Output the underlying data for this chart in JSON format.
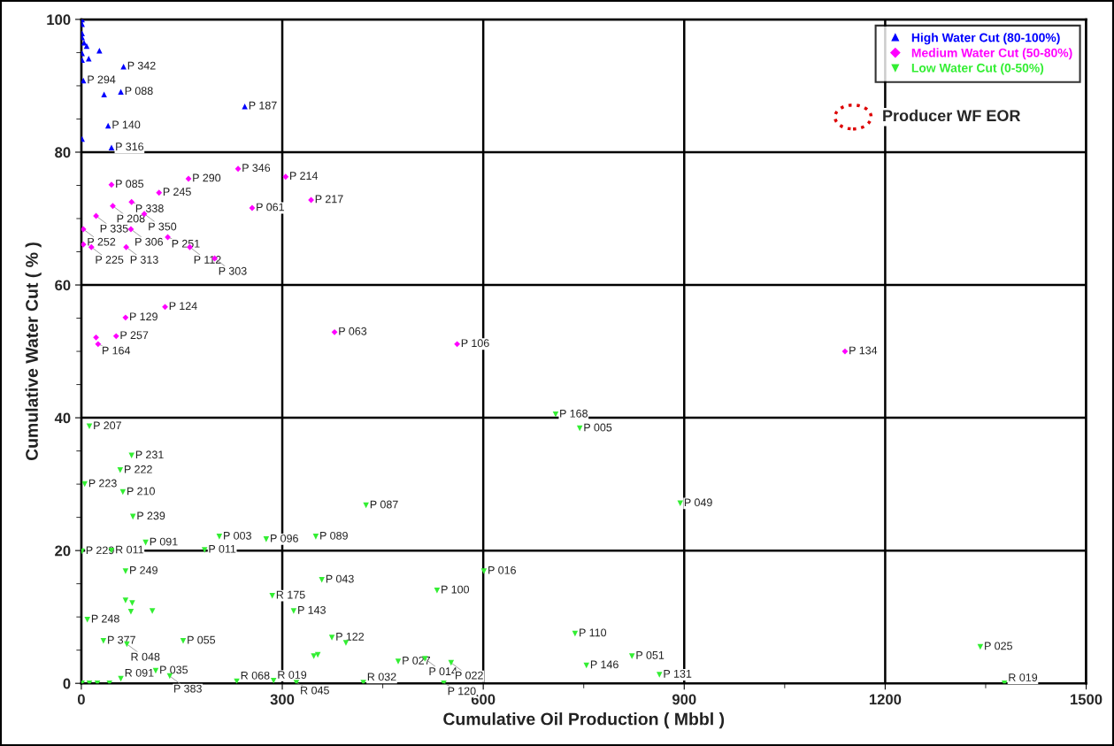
{
  "chart_data": {
    "type": "scatter",
    "xlabel": "Cumulative Oil Production ( Mbbl )",
    "ylabel": "Cumulative Water Cut ( % )",
    "xlim": [
      0,
      1500
    ],
    "ylim": [
      0,
      100
    ],
    "xticks": [
      0,
      {
        "value": 150,
        "label": null
      },
      300,
      {
        "value": 450,
        "label": null
      },
      600,
      {
        "value": 750,
        "label": null
      },
      900,
      {
        "value": 1050,
        "label": null
      },
      1200,
      {
        "value": 1350,
        "label": null
      },
      1500
    ],
    "yticks": [
      0,
      {
        "value": 5,
        "label": null
      },
      {
        "value": 10,
        "label": null
      },
      {
        "value": 15,
        "label": null
      },
      20,
      {
        "value": 25,
        "label": null
      },
      {
        "value": 30,
        "label": null
      },
      {
        "value": 35,
        "label": null
      },
      40,
      {
        "value": 45,
        "label": null
      },
      {
        "value": 50,
        "label": null
      },
      {
        "value": 55,
        "label": null
      },
      60,
      {
        "value": 65,
        "label": null
      },
      {
        "value": 70,
        "label": null
      },
      {
        "value": 75,
        "label": null
      },
      80,
      {
        "value": 85,
        "label": null
      },
      {
        "value": 90,
        "label": null
      },
      {
        "value": 95,
        "label": null
      },
      100
    ],
    "grid": true,
    "legend": "top right",
    "series": [
      {
        "name": "High Water Cut (80-100%)",
        "color": "#0000ff",
        "marker": "triangle",
        "x": [
          244,
          63,
          3,
          40,
          45,
          34,
          59,
          1,
          1,
          1,
          1,
          1,
          4,
          8,
          27,
          1,
          11,
          1
        ],
        "values": [
          86.9,
          92.9,
          90.8,
          84,
          80.7,
          88.7,
          89.1,
          82,
          100,
          99.3,
          97.9,
          97.3,
          96.5,
          96,
          95.3,
          94.9,
          94.1,
          93.9
        ]
      },
      {
        "name": "Medium Water Cut (50-80%)",
        "color": "#ff00ff",
        "marker": "diamond",
        "x": [
          234,
          160,
          305,
          45,
          116,
          343,
          75,
          47,
          255,
          94,
          22,
          3,
          74,
          129,
          3,
          15,
          67,
          162,
          199,
          125,
          66,
          22,
          52,
          25,
          378,
          561,
          1140
        ],
        "values": [
          77.5,
          76,
          76.3,
          75.1,
          73.9,
          72.8,
          72.5,
          71.9,
          71.6,
          70.7,
          70.4,
          68.4,
          68.4,
          67.2,
          66.1,
          65.7,
          65.7,
          65.7,
          64,
          56.7,
          55.1,
          52.1,
          52.3,
          51.1,
          52.9,
          51.1,
          50
        ]
      },
      {
        "name": "Low Water Cut (0-50%)",
        "color": "#33ee33",
        "marker": "triangle_down",
        "x": [
          708,
          744,
          12,
          75,
          58,
          5,
          62,
          77,
          425,
          894,
          206,
          276,
          350,
          96,
          184,
          1,
          45,
          66,
          601,
          359,
          531,
          285,
          317,
          9,
          66,
          76,
          74,
          106,
          33,
          68,
          152,
          737,
          374,
          395,
          347,
          353,
          473,
          513,
          552,
          754,
          822,
          863,
          1342,
          1378,
          111,
          132,
          59,
          232,
          287,
          321,
          421,
          541,
          1,
          12,
          24,
          42
        ],
        "values": [
          40.5,
          38.4,
          38.7,
          34.3,
          32.1,
          30,
          28.8,
          25.1,
          26.8,
          27.1,
          22.1,
          21.7,
          22.1,
          21.2,
          20.1,
          19.9,
          20,
          16.9,
          16.9,
          15.6,
          14,
          13.2,
          10.9,
          9.6,
          12.5,
          12.1,
          10.8,
          10.9,
          6.4,
          5.9,
          6.4,
          7.5,
          6.9,
          6.1,
          4.1,
          4.3,
          3.3,
          3.7,
          3.1,
          2.7,
          4.1,
          1.3,
          5.5,
          0,
          1.9,
          1.1,
          0.7,
          0.3,
          0.4,
          0.1,
          0.1,
          0,
          0,
          0,
          0,
          0
        ]
      }
    ],
    "annotations": [
      {
        "text": "P 187",
        "x": 244,
        "y": 86.9
      },
      {
        "text": "P 342",
        "x": 63,
        "y": 92.9
      },
      {
        "text": "P 294",
        "x": 3,
        "y": 90.8
      },
      {
        "text": "P 140",
        "x": 40,
        "y": 84
      },
      {
        "text": "P 316",
        "x": 45,
        "y": 80.7
      },
      {
        "text": "P 088",
        "x": 59,
        "y": 89.1
      },
      {
        "text": "P 346",
        "x": 234,
        "y": 77.5
      },
      {
        "text": "P 290",
        "x": 160,
        "y": 76
      },
      {
        "text": "P 214",
        "x": 305,
        "y": 76.3
      },
      {
        "text": "P 085",
        "x": 45,
        "y": 75.1
      },
      {
        "text": "P 245",
        "x": 116,
        "y": 73.9
      },
      {
        "text": "P 217",
        "x": 343,
        "y": 72.8
      },
      {
        "text": "P 338",
        "x": 75,
        "y": 72.5
      },
      {
        "text": "P 208",
        "x": 47,
        "y": 71.9
      },
      {
        "text": "P 061",
        "x": 255,
        "y": 71.6
      },
      {
        "text": "P 350",
        "x": 94,
        "y": 70.7
      },
      {
        "text": "P 335",
        "x": 22,
        "y": 70.4
      },
      {
        "text": "P 252",
        "x": 3,
        "y": 68.4
      },
      {
        "text": "P 306",
        "x": 74,
        "y": 68.4
      },
      {
        "text": "P 251",
        "x": 129,
        "y": 67.2
      },
      {
        "text": "P 225",
        "x": 15,
        "y": 65.7
      },
      {
        "text": "P 313",
        "x": 67,
        "y": 65.7
      },
      {
        "text": "P 112",
        "x": 162,
        "y": 65.7
      },
      {
        "text": "P 303",
        "x": 199,
        "y": 64
      },
      {
        "text": "P 124",
        "x": 125,
        "y": 56.7
      },
      {
        "text": "P 129",
        "x": 66,
        "y": 55.1
      },
      {
        "text": "P 257",
        "x": 52,
        "y": 52.3
      },
      {
        "text": "P 164",
        "x": 25,
        "y": 51.1
      },
      {
        "text": "P 063",
        "x": 378,
        "y": 52.9
      },
      {
        "text": "P 106",
        "x": 561,
        "y": 51.1
      },
      {
        "text": "P 134",
        "x": 1140,
        "y": 50
      },
      {
        "text": "P 168",
        "x": 708,
        "y": 40.5
      },
      {
        "text": "P 005",
        "x": 744,
        "y": 38.4
      },
      {
        "text": "P 207",
        "x": 12,
        "y": 38.7
      },
      {
        "text": "P 231",
        "x": 75,
        "y": 34.3
      },
      {
        "text": "P 222",
        "x": 58,
        "y": 32.1
      },
      {
        "text": "P 223",
        "x": 5,
        "y": 30
      },
      {
        "text": "P 210",
        "x": 62,
        "y": 28.8
      },
      {
        "text": "P 239",
        "x": 77,
        "y": 25.1
      },
      {
        "text": "P 087",
        "x": 425,
        "y": 26.8
      },
      {
        "text": "P 049",
        "x": 894,
        "y": 27.1
      },
      {
        "text": "P 003",
        "x": 206,
        "y": 22.1
      },
      {
        "text": "P 096",
        "x": 276,
        "y": 21.7
      },
      {
        "text": "P 089",
        "x": 350,
        "y": 22.1
      },
      {
        "text": "P 091",
        "x": 96,
        "y": 21.2
      },
      {
        "text": "P 011",
        "x": 184,
        "y": 20.1
      },
      {
        "text": "P 229",
        "x": 1,
        "y": 19.9
      },
      {
        "text": "R 011",
        "x": 45,
        "y": 20
      },
      {
        "text": "P 249",
        "x": 66,
        "y": 16.9
      },
      {
        "text": "P 016",
        "x": 601,
        "y": 16.9
      },
      {
        "text": "P 043",
        "x": 359,
        "y": 15.6
      },
      {
        "text": "P 100",
        "x": 531,
        "y": 14
      },
      {
        "text": "R 175",
        "x": 285,
        "y": 13.2
      },
      {
        "text": "P 143",
        "x": 317,
        "y": 10.9
      },
      {
        "text": "P 248",
        "x": 9,
        "y": 9.6
      },
      {
        "text": "P 377",
        "x": 33,
        "y": 6.4
      },
      {
        "text": "R 048",
        "x": 68,
        "y": 5.9
      },
      {
        "text": "P 055",
        "x": 152,
        "y": 6.4
      },
      {
        "text": "P 110",
        "x": 737,
        "y": 7.5
      },
      {
        "text": "P 122",
        "x": 374,
        "y": 6.9
      },
      {
        "text": "P 027",
        "x": 473,
        "y": 3.3
      },
      {
        "text": "P 014",
        "x": 513,
        "y": 3.7
      },
      {
        "text": "P 022",
        "x": 552,
        "y": 3.1
      },
      {
        "text": "P 146",
        "x": 754,
        "y": 2.7
      },
      {
        "text": "P 051",
        "x": 822,
        "y": 4.1
      },
      {
        "text": "P 131",
        "x": 863,
        "y": 1.3
      },
      {
        "text": "P 025",
        "x": 1342,
        "y": 5.5
      },
      {
        "text": "R 019",
        "x": 1378,
        "y": 0
      },
      {
        "text": "P 035",
        "x": 111,
        "y": 1.9
      },
      {
        "text": "P 383",
        "x": 132,
        "y": 1.1
      },
      {
        "text": "R 091",
        "x": 59,
        "y": 0.7
      },
      {
        "text": "R 068",
        "x": 232,
        "y": 0.3
      },
      {
        "text": "R 019",
        "x": 287,
        "y": 0.4
      },
      {
        "text": "R 045",
        "x": 321,
        "y": 0.1
      },
      {
        "text": "R 032",
        "x": 421,
        "y": 0.1
      },
      {
        "text": "P 120",
        "x": 541,
        "y": 0
      },
      "Producer WF EOR"
    ]
  }
}
